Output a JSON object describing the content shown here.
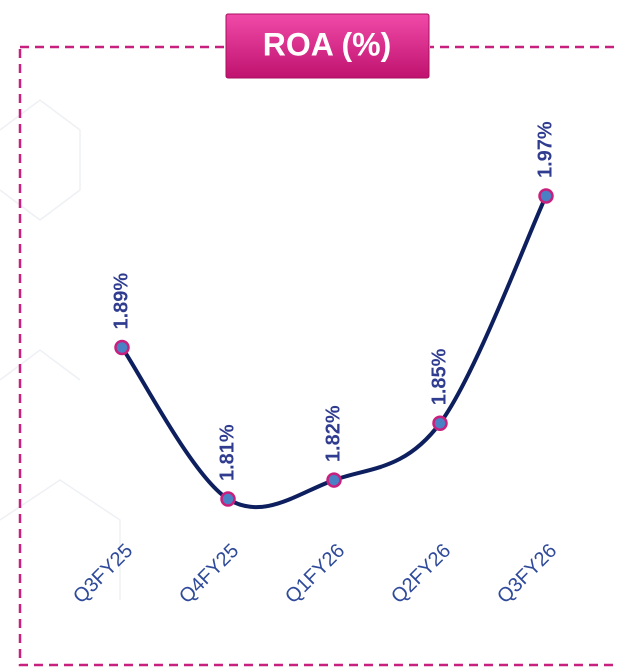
{
  "chart_data": {
    "type": "line",
    "title": "ROA (%)",
    "categories": [
      "Q3FY25",
      "Q4FY25",
      "Q1FY26",
      "Q2FY26",
      "Q3FY26"
    ],
    "values": [
      1.89,
      1.81,
      1.82,
      1.85,
      1.97
    ],
    "value_labels": [
      "1.89%",
      "1.81%",
      "1.82%",
      "1.85%",
      "1.97%"
    ],
    "color": "#0d1f5e",
    "marker_color": "#4a80c4",
    "marker_edge_color": "#c8207e"
  }
}
